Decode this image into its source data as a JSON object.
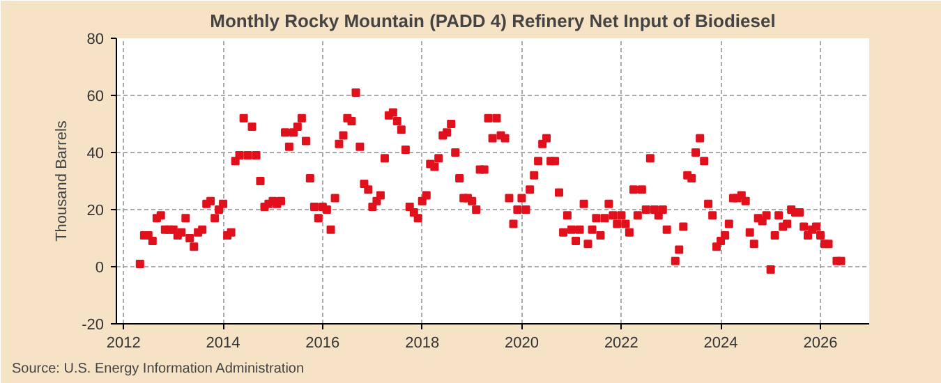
{
  "chart_data": {
    "type": "scatter",
    "title": "Monthly Rocky Mountain (PADD 4) Refinery Net Input of Biodiesel",
    "ylabel": "Thousand Barrels",
    "annotations": [
      "Source: U.S. Energy Information Administration"
    ],
    "marker": "square",
    "grid": true,
    "xlim": [
      "2011-11-10",
      "2026-12-25"
    ],
    "xticks": [
      "2012",
      "2014",
      "2016",
      "2018",
      "2020",
      "2022",
      "2024",
      "2026"
    ],
    "ylim": [
      -20,
      80
    ],
    "yticks": [
      -20,
      0,
      20,
      40,
      60,
      80
    ],
    "x": [
      "2012-05",
      "2012-06",
      "2012-07",
      "2012-08",
      "2012-09",
      "2012-10",
      "2012-11",
      "2012-12",
      "2013-01",
      "2013-02",
      "2013-03",
      "2013-04",
      "2013-05",
      "2013-06",
      "2013-07",
      "2013-08",
      "2013-09",
      "2013-10",
      "2013-11",
      "2013-12",
      "2014-01",
      "2014-02",
      "2014-03",
      "2014-04",
      "2014-05",
      "2014-06",
      "2014-07",
      "2014-08",
      "2014-09",
      "2014-10",
      "2014-11",
      "2014-12",
      "2015-01",
      "2015-02",
      "2015-03",
      "2015-04",
      "2015-05",
      "2015-06",
      "2015-07",
      "2015-08",
      "2015-09",
      "2015-10",
      "2015-11",
      "2015-12",
      "2016-01",
      "2016-02",
      "2016-03",
      "2016-04",
      "2016-05",
      "2016-06",
      "2016-07",
      "2016-08",
      "2016-09",
      "2016-10",
      "2016-11",
      "2016-12",
      "2017-01",
      "2017-02",
      "2017-03",
      "2017-04",
      "2017-05",
      "2017-06",
      "2017-07",
      "2017-08",
      "2017-09",
      "2017-10",
      "2017-11",
      "2017-12",
      "2018-01",
      "2018-02",
      "2018-03",
      "2018-04",
      "2018-05",
      "2018-06",
      "2018-07",
      "2018-08",
      "2018-09",
      "2018-10",
      "2018-11",
      "2018-12",
      "2019-01",
      "2019-02",
      "2019-03",
      "2019-04",
      "2019-05",
      "2019-06",
      "2019-07",
      "2019-08",
      "2019-09",
      "2019-10",
      "2019-11",
      "2019-12",
      "2020-01",
      "2020-02",
      "2020-03",
      "2020-04",
      "2020-05",
      "2020-06",
      "2020-07",
      "2020-08",
      "2020-09",
      "2020-10",
      "2020-11",
      "2020-12",
      "2021-01",
      "2021-02",
      "2021-03",
      "2021-04",
      "2021-05",
      "2021-06",
      "2021-07",
      "2021-08",
      "2021-09",
      "2021-10",
      "2021-11",
      "2021-12",
      "2022-01",
      "2022-02",
      "2022-03",
      "2022-04",
      "2022-05",
      "2022-06",
      "2022-07",
      "2022-08",
      "2022-09",
      "2022-10",
      "2022-11",
      "2022-12",
      "2023-01",
      "2023-02",
      "2023-03",
      "2023-04",
      "2023-05",
      "2023-06",
      "2023-07",
      "2023-08",
      "2023-09",
      "2023-10",
      "2023-11",
      "2023-12",
      "2024-01",
      "2024-02",
      "2024-03",
      "2024-04",
      "2024-05",
      "2024-06",
      "2024-07",
      "2024-08",
      "2024-09",
      "2024-10",
      "2024-11",
      "2024-12",
      "2025-01",
      "2025-02",
      "2025-03",
      "2025-04",
      "2025-05",
      "2025-06",
      "2025-07",
      "2025-08",
      "2025-09",
      "2025-10",
      "2025-11",
      "2025-12",
      "2026-01",
      "2026-02",
      "2026-03",
      "2026-04",
      "2026-05",
      "2026-06"
    ],
    "series": [
      {
        "color": "#e0101c",
        "values": [
          1,
          11,
          11,
          9,
          17,
          18,
          13,
          13,
          13,
          11,
          12,
          17,
          10,
          7,
          12,
          13,
          22,
          23,
          17,
          20,
          22,
          11,
          12,
          37,
          39,
          52,
          39,
          49,
          39,
          30,
          21,
          22,
          23,
          22,
          23,
          47,
          42,
          47,
          49,
          52,
          44,
          31,
          21,
          17,
          21,
          20,
          13,
          24,
          43,
          46,
          52,
          51,
          61,
          42,
          29,
          27,
          21,
          23,
          25,
          38,
          53,
          54,
          51,
          48,
          41,
          21,
          19,
          17,
          23,
          25,
          36,
          35,
          38,
          46,
          47,
          50,
          40,
          31,
          24,
          24,
          23,
          20,
          34,
          34,
          52,
          45,
          52,
          46,
          45,
          24,
          15,
          20,
          24,
          20,
          27,
          32,
          37,
          43,
          45,
          37,
          37,
          26,
          12,
          18,
          13,
          9,
          13,
          22,
          8,
          13,
          17,
          11,
          17,
          22,
          18,
          15,
          18,
          15,
          12,
          27,
          18,
          27,
          20,
          38,
          20,
          18,
          20,
          13,
          null,
          2,
          6,
          14,
          32,
          31,
          40,
          45,
          37,
          22,
          18,
          7,
          9,
          11,
          15,
          24,
          24,
          25,
          23,
          12,
          8,
          17,
          16,
          18,
          -1,
          11,
          18,
          14,
          15,
          20,
          19,
          19,
          14,
          11,
          13,
          14,
          11,
          8,
          8,
          null,
          2,
          2
        ]
      }
    ]
  }
}
